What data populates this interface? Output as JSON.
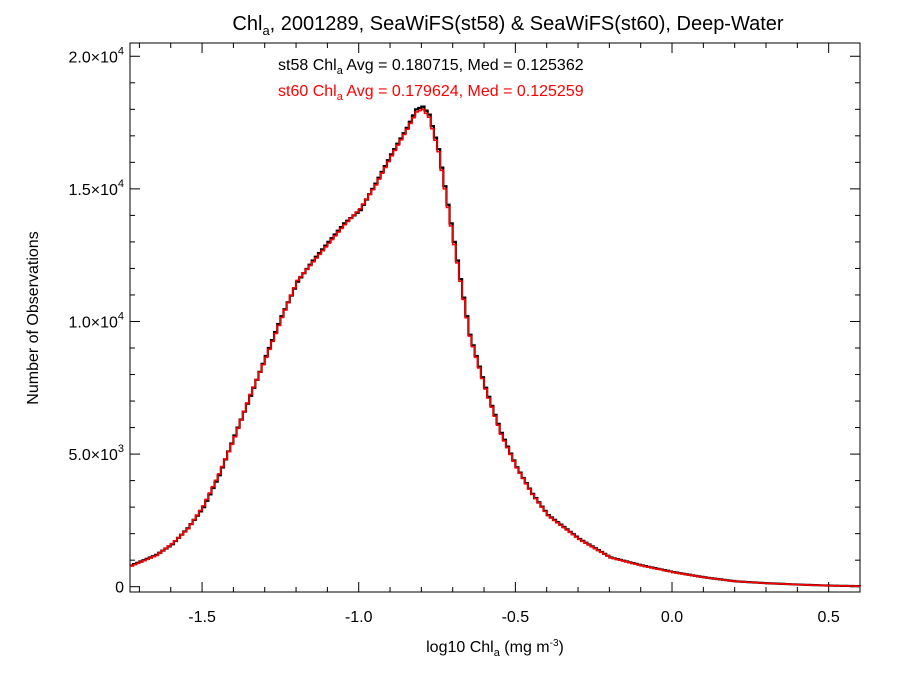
{
  "chart_data": {
    "type": "line",
    "title": {
      "part1": "Chl",
      "sub": "a",
      "part2": ", 2001289, SeaWiFS(st58) & SeaWiFS(st60), Deep-Water"
    },
    "xlabel": {
      "part1": "log10 Chl",
      "sub": "a",
      "part2": " (mg m",
      "sup": "-3",
      "part3": ")"
    },
    "ylabel": "Number of Observations",
    "xlim": [
      -1.73,
      0.6
    ],
    "ylim": [
      -200,
      20500
    ],
    "x_ticks": [
      {
        "value": -1.5,
        "label": "-1.5"
      },
      {
        "value": -1.0,
        "label": "-1.0"
      },
      {
        "value": -0.5,
        "label": "-0.5"
      },
      {
        "value": 0.0,
        "label": "0.0"
      },
      {
        "value": 0.5,
        "label": "0.5"
      }
    ],
    "y_ticks": [
      {
        "value": 0,
        "mant": "0",
        "exp": ""
      },
      {
        "value": 5000,
        "mant": "5.0×10",
        "exp": "3"
      },
      {
        "value": 10000,
        "mant": "1.0×10",
        "exp": "4"
      },
      {
        "value": 15000,
        "mant": "1.5×10",
        "exp": "4"
      },
      {
        "value": 20000,
        "mant": "2.0×10",
        "exp": "4"
      }
    ],
    "legend_position": "top-center",
    "annotations": [
      {
        "pre": "st58 Chl",
        "sub": "a",
        "post": " Avg = 0.180715, Med = 0.125362",
        "color": "#000000"
      },
      {
        "pre": "st60 Chl",
        "sub": "a",
        "post": " Avg = 0.179624, Med = 0.125259",
        "color": "#ff0000"
      }
    ],
    "series": [
      {
        "color": "#000000",
        "x": [
          -1.73,
          -1.65,
          -1.6,
          -1.55,
          -1.5,
          -1.45,
          -1.4,
          -1.35,
          -1.3,
          -1.25,
          -1.2,
          -1.15,
          -1.1,
          -1.05,
          -1.0,
          -0.95,
          -0.9,
          -0.85,
          -0.82,
          -0.8,
          -0.78,
          -0.75,
          -0.7,
          -0.65,
          -0.6,
          -0.55,
          -0.5,
          -0.45,
          -0.4,
          -0.3,
          -0.2,
          -0.1,
          0.0,
          0.1,
          0.2,
          0.3,
          0.4,
          0.5,
          0.6
        ],
        "y": [
          800,
          1200,
          1600,
          2200,
          3000,
          4200,
          5700,
          7200,
          8700,
          10200,
          11500,
          12300,
          13000,
          13700,
          14200,
          15200,
          16300,
          17300,
          18000,
          18100,
          17800,
          16500,
          13000,
          9500,
          7500,
          5800,
          4500,
          3500,
          2700,
          1800,
          1100,
          800,
          550,
          350,
          200,
          130,
          80,
          40,
          20
        ]
      },
      {
        "color": "#ff0000",
        "x": [
          -1.73,
          -1.65,
          -1.6,
          -1.55,
          -1.5,
          -1.45,
          -1.4,
          -1.35,
          -1.3,
          -1.25,
          -1.2,
          -1.15,
          -1.1,
          -1.05,
          -1.0,
          -0.95,
          -0.9,
          -0.85,
          -0.82,
          -0.8,
          -0.78,
          -0.75,
          -0.7,
          -0.65,
          -0.6,
          -0.55,
          -0.5,
          -0.45,
          -0.4,
          -0.3,
          -0.2,
          -0.1,
          0.0,
          0.1,
          0.2,
          0.3,
          0.4,
          0.5,
          0.6
        ],
        "y": [
          780,
          1180,
          1620,
          2180,
          3050,
          4250,
          5650,
          7250,
          8650,
          10150,
          11550,
          12250,
          12950,
          13650,
          14250,
          15150,
          16250,
          17250,
          17900,
          18000,
          17700,
          16400,
          12900,
          9450,
          7450,
          5750,
          4480,
          3480,
          2680,
          1780,
          1090,
          790,
          540,
          345,
          198,
          128,
          78,
          39,
          19
        ]
      }
    ]
  }
}
